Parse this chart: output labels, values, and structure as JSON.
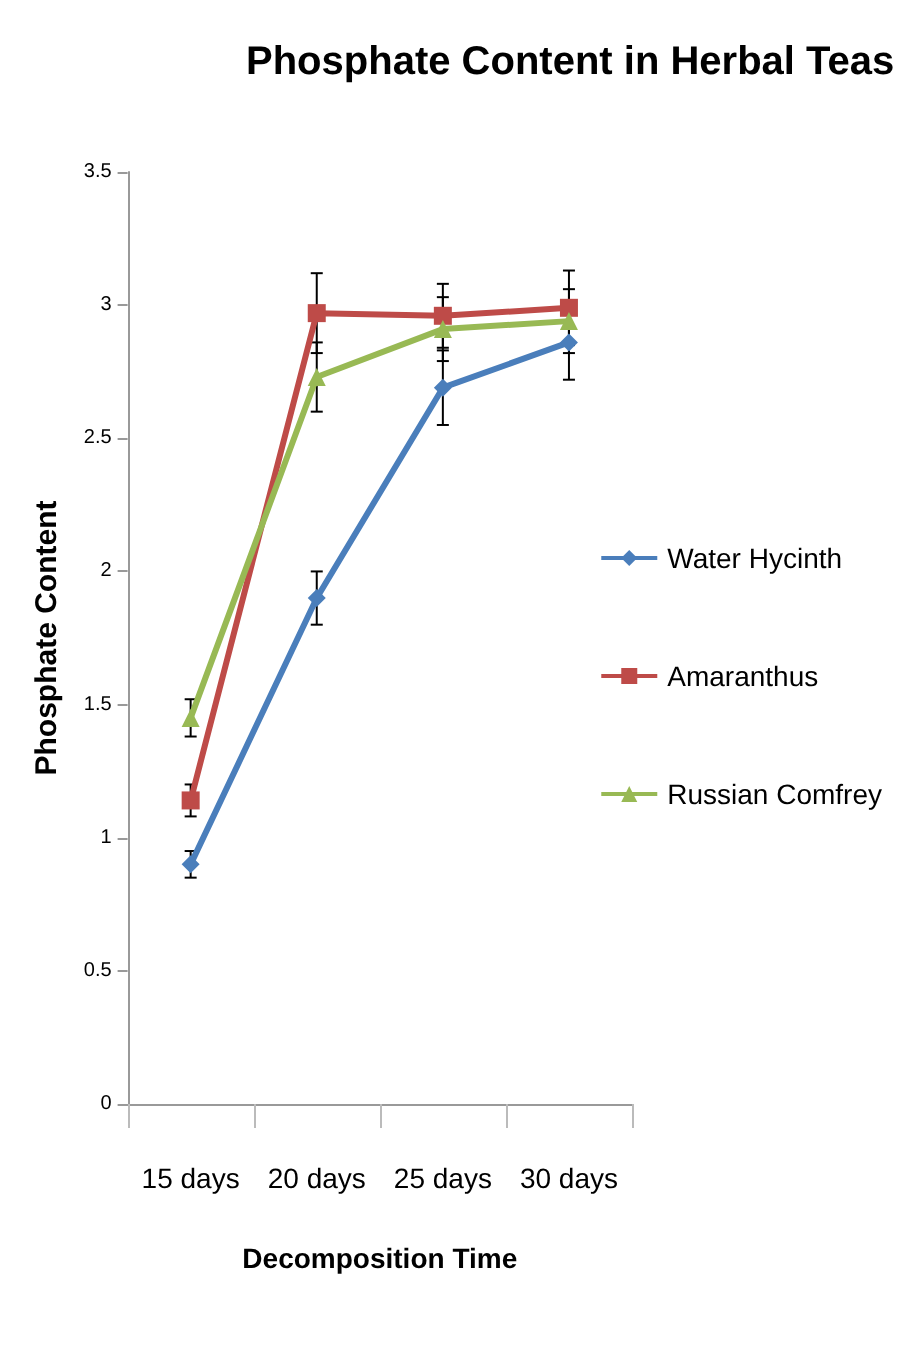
{
  "chart_data": {
    "type": "line",
    "title": "Phosphate Content in Herbal Teas",
    "xlabel": "Decomposition Time",
    "ylabel": "Phosphate Content",
    "categories": [
      "15 days",
      "20 days",
      "25 days",
      "30 days"
    ],
    "series": [
      {
        "name": "Water Hycinth",
        "color": "#4a7ebb",
        "marker": "diamond",
        "values": [
          0.9,
          1.9,
          2.69,
          2.86
        ],
        "errors": [
          0.05,
          0.1,
          0.14,
          0.14
        ]
      },
      {
        "name": "Amaranthus",
        "color": "#be4b48",
        "marker": "square",
        "values": [
          1.14,
          2.97,
          2.96,
          2.99
        ],
        "errors": [
          0.06,
          0.15,
          0.12,
          0.14
        ]
      },
      {
        "name": "Russian Comfrey",
        "color": "#98b954",
        "marker": "triangle",
        "values": [
          1.45,
          2.73,
          2.91,
          2.94
        ],
        "errors": [
          0.07,
          0.13,
          0.12,
          0.12
        ]
      }
    ],
    "ylim": [
      0,
      3.5
    ],
    "yticks": [
      0,
      0.5,
      1,
      1.5,
      2,
      2.5,
      3,
      3.5
    ],
    "grid": false,
    "legend": "right"
  }
}
